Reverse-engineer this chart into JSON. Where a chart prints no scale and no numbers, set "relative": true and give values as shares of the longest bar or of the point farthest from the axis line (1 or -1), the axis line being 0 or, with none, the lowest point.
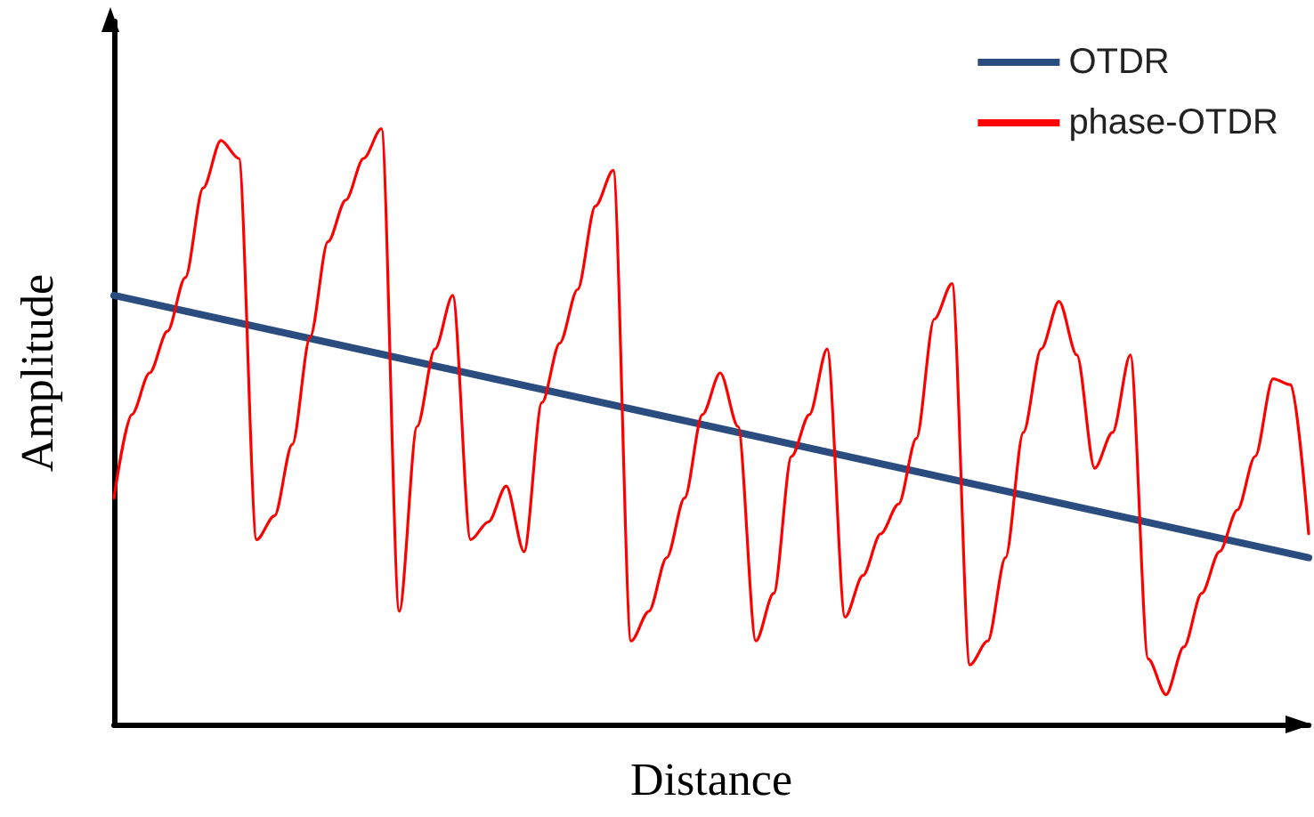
{
  "chart_data": {
    "type": "line",
    "relative": true,
    "xlabel": "Distance",
    "ylabel": "Amplitude",
    "legend": "top right",
    "grid": false,
    "marker": "none",
    "line_style": "solid",
    "categories": [
      null,
      null,
      null,
      null,
      null,
      null,
      null,
      null,
      null,
      null,
      null,
      null,
      null,
      null,
      null,
      null,
      null,
      null,
      null,
      null,
      null,
      null,
      null,
      null,
      null,
      null,
      null,
      null,
      null,
      null,
      null,
      null,
      null,
      null,
      null,
      null,
      null,
      null,
      null,
      null,
      null,
      null,
      null,
      null,
      null,
      null,
      null,
      null,
      null,
      null,
      null,
      null,
      null,
      null,
      null,
      null,
      null,
      null,
      null,
      null,
      null,
      null,
      null,
      null,
      null,
      null,
      null,
      null
    ],
    "series": [
      {
        "name": "OTDR",
        "color": "#2b4c7e",
        "values": [
          0.72,
          null,
          null,
          null,
          null,
          null,
          null,
          null,
          null,
          null,
          null,
          null,
          null,
          null,
          null,
          null,
          null,
          null,
          null,
          null,
          null,
          null,
          null,
          null,
          null,
          null,
          null,
          null,
          null,
          null,
          null,
          null,
          null,
          null,
          null,
          null,
          null,
          null,
          null,
          null,
          null,
          null,
          null,
          null,
          null,
          null,
          null,
          null,
          null,
          null,
          null,
          null,
          null,
          null,
          null,
          null,
          null,
          null,
          null,
          null,
          null,
          null,
          null,
          null,
          null,
          null,
          null,
          0.28
        ]
      },
      {
        "name": "phase-OTDR",
        "color": "#ff0000",
        "values": [
          0.38,
          0.52,
          0.59,
          0.66,
          0.75,
          0.9,
          0.98,
          0.95,
          0.31,
          0.35,
          0.47,
          0.65,
          0.81,
          0.88,
          0.95,
          1.0,
          0.19,
          0.5,
          0.63,
          0.72,
          0.31,
          0.34,
          0.4,
          0.29,
          0.54,
          0.64,
          0.73,
          0.87,
          0.93,
          0.14,
          0.19,
          0.28,
          0.38,
          0.52,
          0.59,
          0.5,
          0.14,
          0.22,
          0.45,
          0.52,
          0.63,
          0.18,
          0.25,
          0.32,
          0.37,
          0.48,
          0.68,
          0.74,
          0.1,
          0.14,
          0.28,
          0.49,
          0.63,
          0.71,
          0.62,
          0.43,
          0.49,
          0.62,
          0.11,
          0.05,
          0.13,
          0.22,
          0.29,
          0.36,
          0.45,
          0.58,
          0.57,
          0.32
        ]
      }
    ]
  }
}
